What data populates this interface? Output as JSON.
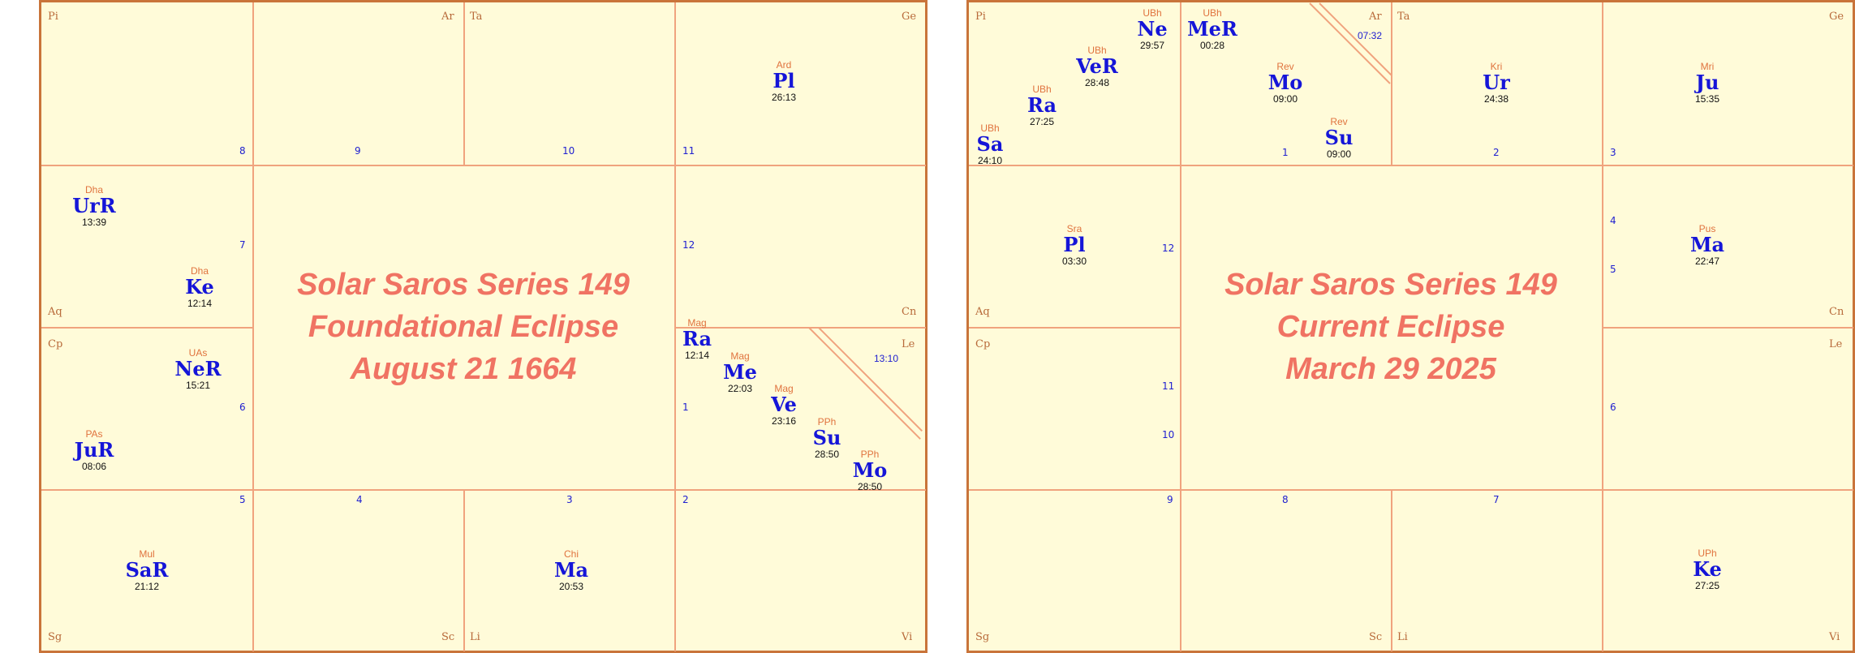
{
  "charts": [
    {
      "title_lines": [
        "Solar Saros Series 149",
        "Foundational Eclipse",
        "August 21 1664"
      ],
      "signs": {
        "Pi": "Pi",
        "Ar": "Ar",
        "Ta": "Ta",
        "Ge": "Ge",
        "Aq": "Aq",
        "Cn": "Cn",
        "Cp": "Cp",
        "Le": "Le",
        "Sg": "Sg",
        "Sc": "Sc",
        "Li": "Li",
        "Vi": "Vi"
      },
      "houses": {
        "h1": "1",
        "h2": "2",
        "h3": "3",
        "h4": "4",
        "h5": "5",
        "h6": "6",
        "h7": "7",
        "h8": "8",
        "h9": "9",
        "h10": "10",
        "h11": "11",
        "h12": "12"
      },
      "ascendant_degree": "13:10",
      "planets": [
        {
          "nak": "Ard",
          "name": "Pl",
          "deg": "26:13"
        },
        {
          "nak": "Dha",
          "name": "UrR",
          "deg": "13:39"
        },
        {
          "nak": "Dha",
          "name": "Ke",
          "deg": "12:14"
        },
        {
          "nak": "UAs",
          "name": "NeR",
          "deg": "15:21"
        },
        {
          "nak": "PAs",
          "name": "JuR",
          "deg": "08:06"
        },
        {
          "nak": "Mag",
          "name": "Ra",
          "deg": "12:14"
        },
        {
          "nak": "Mag",
          "name": "Me",
          "deg": "22:03"
        },
        {
          "nak": "Mag",
          "name": "Ve",
          "deg": "23:16"
        },
        {
          "nak": "PPh",
          "name": "Su",
          "deg": "28:50"
        },
        {
          "nak": "PPh",
          "name": "Mo",
          "deg": "28:50"
        },
        {
          "nak": "Mul",
          "name": "SaR",
          "deg": "21:12"
        },
        {
          "nak": "Chi",
          "name": "Ma",
          "deg": "20:53"
        }
      ]
    },
    {
      "title_lines": [
        "Solar Saros Series 149",
        "Current Eclipse",
        "March 29 2025"
      ],
      "signs": {
        "Pi": "Pi",
        "Ar": "Ar",
        "Ta": "Ta",
        "Ge": "Ge",
        "Aq": "Aq",
        "Cn": "Cn",
        "Cp": "Cp",
        "Le": "Le",
        "Sg": "Sg",
        "Sc": "Sc",
        "Li": "Li",
        "Vi": "Vi"
      },
      "houses": {
        "h1": "1",
        "h2": "2",
        "h3": "3",
        "h4": "4",
        "h5": "5",
        "h6": "6",
        "h7": "7",
        "h8": "8",
        "h9": "9",
        "h10": "10",
        "h11": "11",
        "h12": "12"
      },
      "ascendant_degree": "07:32",
      "planets": [
        {
          "nak": "UBh",
          "name": "Sa",
          "deg": "24:10"
        },
        {
          "nak": "UBh",
          "name": "Ra",
          "deg": "27:25"
        },
        {
          "nak": "UBh",
          "name": "VeR",
          "deg": "28:48"
        },
        {
          "nak": "UBh",
          "name": "Ne",
          "deg": "29:57"
        },
        {
          "nak": "UBh",
          "name": "MeR",
          "deg": "00:28"
        },
        {
          "nak": "Rev",
          "name": "Mo",
          "deg": "09:00"
        },
        {
          "nak": "Rev",
          "name": "Su",
          "deg": "09:00"
        },
        {
          "nak": "Kri",
          "name": "Ur",
          "deg": "24:38"
        },
        {
          "nak": "Mri",
          "name": "Ju",
          "deg": "15:35"
        },
        {
          "nak": "Sra",
          "name": "Pl",
          "deg": "03:30"
        },
        {
          "nak": "Pus",
          "name": "Ma",
          "deg": "22:47"
        },
        {
          "nak": "UPh",
          "name": "Ke",
          "deg": "27:25"
        }
      ]
    }
  ]
}
